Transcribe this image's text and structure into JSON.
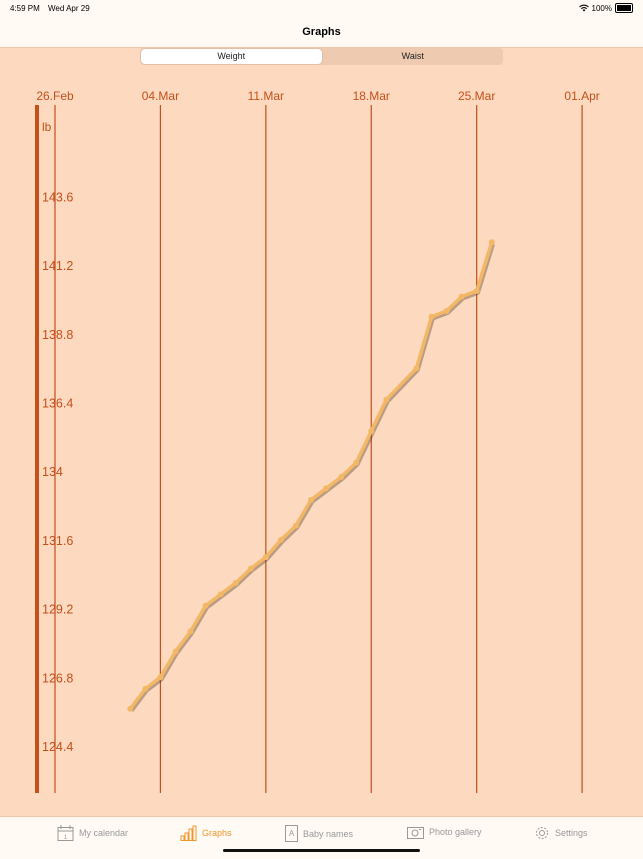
{
  "status_bar": {
    "time": "4:59 PM",
    "date": "Wed Apr 29",
    "battery": "100%"
  },
  "nav": {
    "title": "Graphs"
  },
  "segments": [
    {
      "label": "Weight",
      "selected": true
    },
    {
      "label": "Waist",
      "selected": false
    }
  ],
  "colors": {
    "background": "#fdd9c0",
    "grid": "#c4501a",
    "line": "#f3b866",
    "accent": "#f0962a"
  },
  "chart_data": {
    "type": "line",
    "ylabel": "lb",
    "x_ticks": [
      "26.Feb",
      "04.Mar",
      "11.Mar",
      "18.Mar",
      "25.Mar",
      "01.Apr"
    ],
    "y_ticks": [
      "124.4",
      "126.8",
      "129.2",
      "131.6",
      "134",
      "136.4",
      "138.8",
      "141.2",
      "143.6"
    ],
    "xlim": [
      "26.Feb",
      "01.Apr"
    ],
    "ylim": [
      123.2,
      145.3
    ],
    "grid": "vertical",
    "series": [
      {
        "x": [
          "02.Mar",
          "03.Mar",
          "04.Mar",
          "05.Mar",
          "06.Mar",
          "07.Mar",
          "08.Mar",
          "09.Mar",
          "10.Mar",
          "11.Mar",
          "12.Mar",
          "13.Mar",
          "14.Mar",
          "15.Mar",
          "16.Mar",
          "17.Mar",
          "18.Mar",
          "19.Mar",
          "21.Mar",
          "22.Mar",
          "23.Mar",
          "24.Mar",
          "25.Mar",
          "26.Mar"
        ],
        "day_index": [
          5,
          6,
          7,
          8,
          9,
          10,
          11,
          12,
          13,
          14,
          15,
          16,
          17,
          18,
          19,
          20,
          21,
          22,
          24,
          25,
          26,
          27,
          28,
          29
        ],
        "values": [
          125.7,
          126.4,
          126.8,
          127.7,
          128.4,
          129.3,
          129.7,
          130.1,
          130.6,
          131.0,
          131.6,
          132.1,
          133.0,
          133.4,
          133.8,
          134.3,
          135.4,
          136.5,
          137.6,
          139.4,
          139.6,
          140.1,
          140.3,
          142.0
        ]
      }
    ]
  },
  "tabs": [
    {
      "label": "My calendar",
      "icon": "calendar-icon",
      "active": false
    },
    {
      "label": "Graphs",
      "icon": "bar-chart-icon",
      "active": true
    },
    {
      "label": "Baby names",
      "icon": "document-a-icon",
      "active": false
    },
    {
      "label": "Photo gallery",
      "icon": "camera-icon",
      "active": false
    },
    {
      "label": "Settings",
      "icon": "gear-icon",
      "active": false
    }
  ]
}
